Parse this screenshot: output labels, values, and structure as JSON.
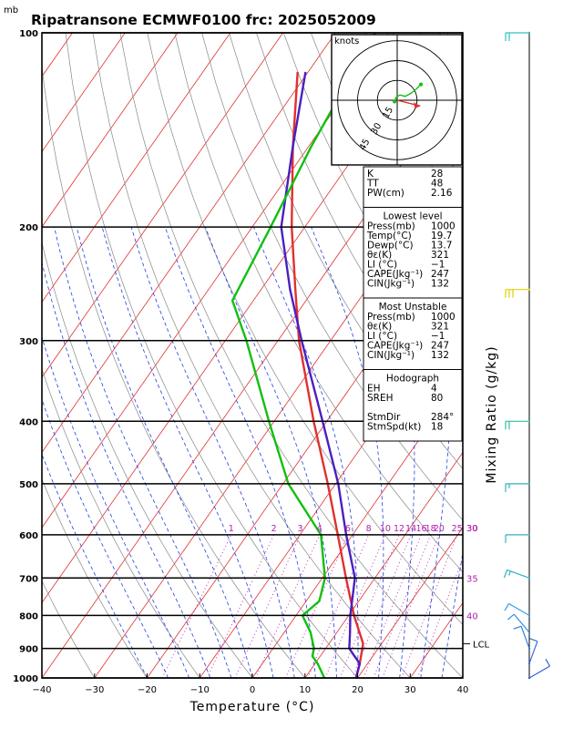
{
  "title": "Ripatransone ECMWF0100  frc: 2025052009",
  "units_top": "mb",
  "colors": {
    "isotherm": "#e03030",
    "dry_adiabat": "#888888",
    "moist_adiabat": "#2040e0",
    "mixing_ratio": "#b020b0",
    "temperature": "#4a20c0",
    "dewpoint": "#10c010",
    "parcel": "#e03030",
    "hodograph": "#10c010",
    "storm_motion": "#e03030"
  },
  "chart_data": {
    "type": "skew-t",
    "xlabel": "Temperature (°C)",
    "right_label": "Mixing Ratio (g/kg)",
    "x_ticks": [
      "−40",
      "−30",
      "−20",
      "−10",
      "0",
      "10",
      "20",
      "30",
      "40"
    ],
    "x_tick_values": [
      -40,
      -30,
      -20,
      -10,
      0,
      10,
      20,
      30,
      40
    ],
    "p_ticks": [
      "100",
      "200",
      "300",
      "400",
      "500",
      "600",
      "700",
      "800",
      "900",
      "1000"
    ],
    "p_tick_values": [
      100,
      200,
      300,
      400,
      500,
      600,
      700,
      800,
      900,
      1000
    ],
    "xlim": [
      -40,
      40
    ],
    "plim": [
      1000,
      100
    ],
    "mixing_ratio_labels": [
      "1",
      "2",
      "3",
      "4",
      "6",
      "8",
      "10",
      "12",
      "14",
      "16",
      "18",
      "20",
      "25",
      "30"
    ],
    "mixing_ratio_values": [
      1,
      2,
      3,
      4,
      6,
      8,
      10,
      12,
      14,
      16,
      18,
      20,
      25,
      30
    ],
    "theta_e_labels": [
      {
        "text": "30",
        "p": 600
      },
      {
        "text": "35",
        "p": 700
      },
      {
        "text": "40",
        "p": 800
      }
    ],
    "lcl_label": "LCL",
    "lcl_p": 885,
    "temperature_profile": [
      {
        "p": 1000,
        "t": 19.7
      },
      {
        "p": 950,
        "t": 18.5
      },
      {
        "p": 925,
        "t": 16.5
      },
      {
        "p": 900,
        "t": 14.5
      },
      {
        "p": 850,
        "t": 12.5
      },
      {
        "p": 800,
        "t": 10.3
      },
      {
        "p": 700,
        "t": 6.2
      },
      {
        "p": 600,
        "t": -1.2
      },
      {
        "p": 500,
        "t": -9.5
      },
      {
        "p": 400,
        "t": -20.8
      },
      {
        "p": 300,
        "t": -35.5
      },
      {
        "p": 250,
        "t": -44.5
      },
      {
        "p": 200,
        "t": -54.5
      },
      {
        "p": 150,
        "t": -63
      },
      {
        "p": 115,
        "t": -70.5
      }
    ],
    "dewpoint_profile": [
      {
        "p": 1000,
        "t": 13.7
      },
      {
        "p": 950,
        "t": 10.5
      },
      {
        "p": 925,
        "t": 8.5
      },
      {
        "p": 900,
        "t": 7.8
      },
      {
        "p": 850,
        "t": 5.0
      },
      {
        "p": 800,
        "t": 1.2
      },
      {
        "p": 760,
        "t": 2.5
      },
      {
        "p": 700,
        "t": 0.5
      },
      {
        "p": 600,
        "t": -6.0
      },
      {
        "p": 500,
        "t": -19.0
      },
      {
        "p": 400,
        "t": -31.0
      },
      {
        "p": 300,
        "t": -46.0
      },
      {
        "p": 260,
        "t": -54.0
      },
      {
        "p": 200,
        "t": -56.5
      },
      {
        "p": 150,
        "t": -59.5
      },
      {
        "p": 100,
        "t": -62.5
      }
    ],
    "parcel_profile": [
      {
        "p": 1000,
        "t": 19.7
      },
      {
        "p": 950,
        "t": 18.5
      },
      {
        "p": 885,
        "t": 16.5
      },
      {
        "p": 800,
        "t": 11.0
      },
      {
        "p": 700,
        "t": 4.5
      },
      {
        "p": 600,
        "t": -2.8
      },
      {
        "p": 500,
        "t": -11.5
      },
      {
        "p": 400,
        "t": -22.5
      },
      {
        "p": 300,
        "t": -36.0
      },
      {
        "p": 250,
        "t": -43.5
      },
      {
        "p": 200,
        "t": -52.5
      },
      {
        "p": 150,
        "t": -63.0
      },
      {
        "p": 115,
        "t": -72.0
      }
    ],
    "wind_barbs": [
      {
        "p": 100,
        "dir": 270,
        "spd": 20,
        "color": "#30c0c0"
      },
      {
        "p": 250,
        "dir": 270,
        "spd": 30,
        "color": "#e0d000"
      },
      {
        "p": 400,
        "dir": 270,
        "spd": 20,
        "color": "#30c0a0"
      },
      {
        "p": 500,
        "dir": 270,
        "spd": 15,
        "color": "#30b0c0"
      },
      {
        "p": 600,
        "dir": 270,
        "spd": 10,
        "color": "#30b0c0"
      },
      {
        "p": 700,
        "dir": 290,
        "spd": 15,
        "color": "#30b0c0"
      },
      {
        "p": 800,
        "dir": 300,
        "spd": 10,
        "color": "#30a0e0"
      },
      {
        "p": 850,
        "dir": 320,
        "spd": 10,
        "color": "#3090e0"
      },
      {
        "p": 900,
        "dir": 340,
        "spd": 10,
        "color": "#3080e0"
      },
      {
        "p": 950,
        "dir": 20,
        "spd": 10,
        "color": "#3070e0"
      },
      {
        "p": 1000,
        "dir": 60,
        "spd": 10,
        "color": "#3060e0"
      }
    ],
    "hodograph": {
      "units": "knots",
      "ring_labels": [
        "15",
        "30",
        "45"
      ],
      "ring_values": [
        15,
        30,
        45
      ],
      "points": [
        [
          -2,
          -1
        ],
        [
          -1,
          2
        ],
        [
          2,
          4
        ],
        [
          6,
          3
        ],
        [
          10,
          5
        ],
        [
          14,
          8
        ],
        [
          18,
          12
        ]
      ],
      "storm_motion": {
        "dir": 284,
        "spd": 18
      }
    }
  },
  "indices": {
    "top": [
      {
        "label": "K",
        "value": "28"
      },
      {
        "label": "TT",
        "value": "48"
      },
      {
        "label": "PW(cm)",
        "value": "2.16"
      }
    ],
    "lowest_level": {
      "heading": "Lowest level",
      "rows": [
        {
          "label": "Press(mb)",
          "value": "1000"
        },
        {
          "label": "Temp(°C)",
          "value": "19.7"
        },
        {
          "label": "Dewp(°C)",
          "value": "13.7"
        },
        {
          "label": "θε(K)",
          "value": "321"
        },
        {
          "label": "LI (°C)",
          "value": "−1"
        },
        {
          "label": "CAPE(Jkg⁻¹)",
          "value": "247"
        },
        {
          "label": "CIN(Jkg⁻¹)",
          "value": "132"
        }
      ]
    },
    "most_unstable": {
      "heading": "Most Unstable",
      "rows": [
        {
          "label": "Press(mb)",
          "value": "1000"
        },
        {
          "label": "θε(K)",
          "value": "321"
        },
        {
          "label": "LI (°C)",
          "value": "−1"
        },
        {
          "label": "CAPE(Jkg⁻¹)",
          "value": "247"
        },
        {
          "label": "CIN(Jkg⁻¹)",
          "value": "132"
        }
      ]
    },
    "hodograph_box": {
      "heading": "Hodograph",
      "rows": [
        {
          "label": "EH",
          "value": "4"
        },
        {
          "label": "SREH",
          "value": "80"
        },
        {
          "label": "",
          "value": ""
        },
        {
          "label": "StmDir",
          "value": "284°"
        },
        {
          "label": "StmSpd(kt)",
          "value": "18"
        }
      ]
    }
  }
}
